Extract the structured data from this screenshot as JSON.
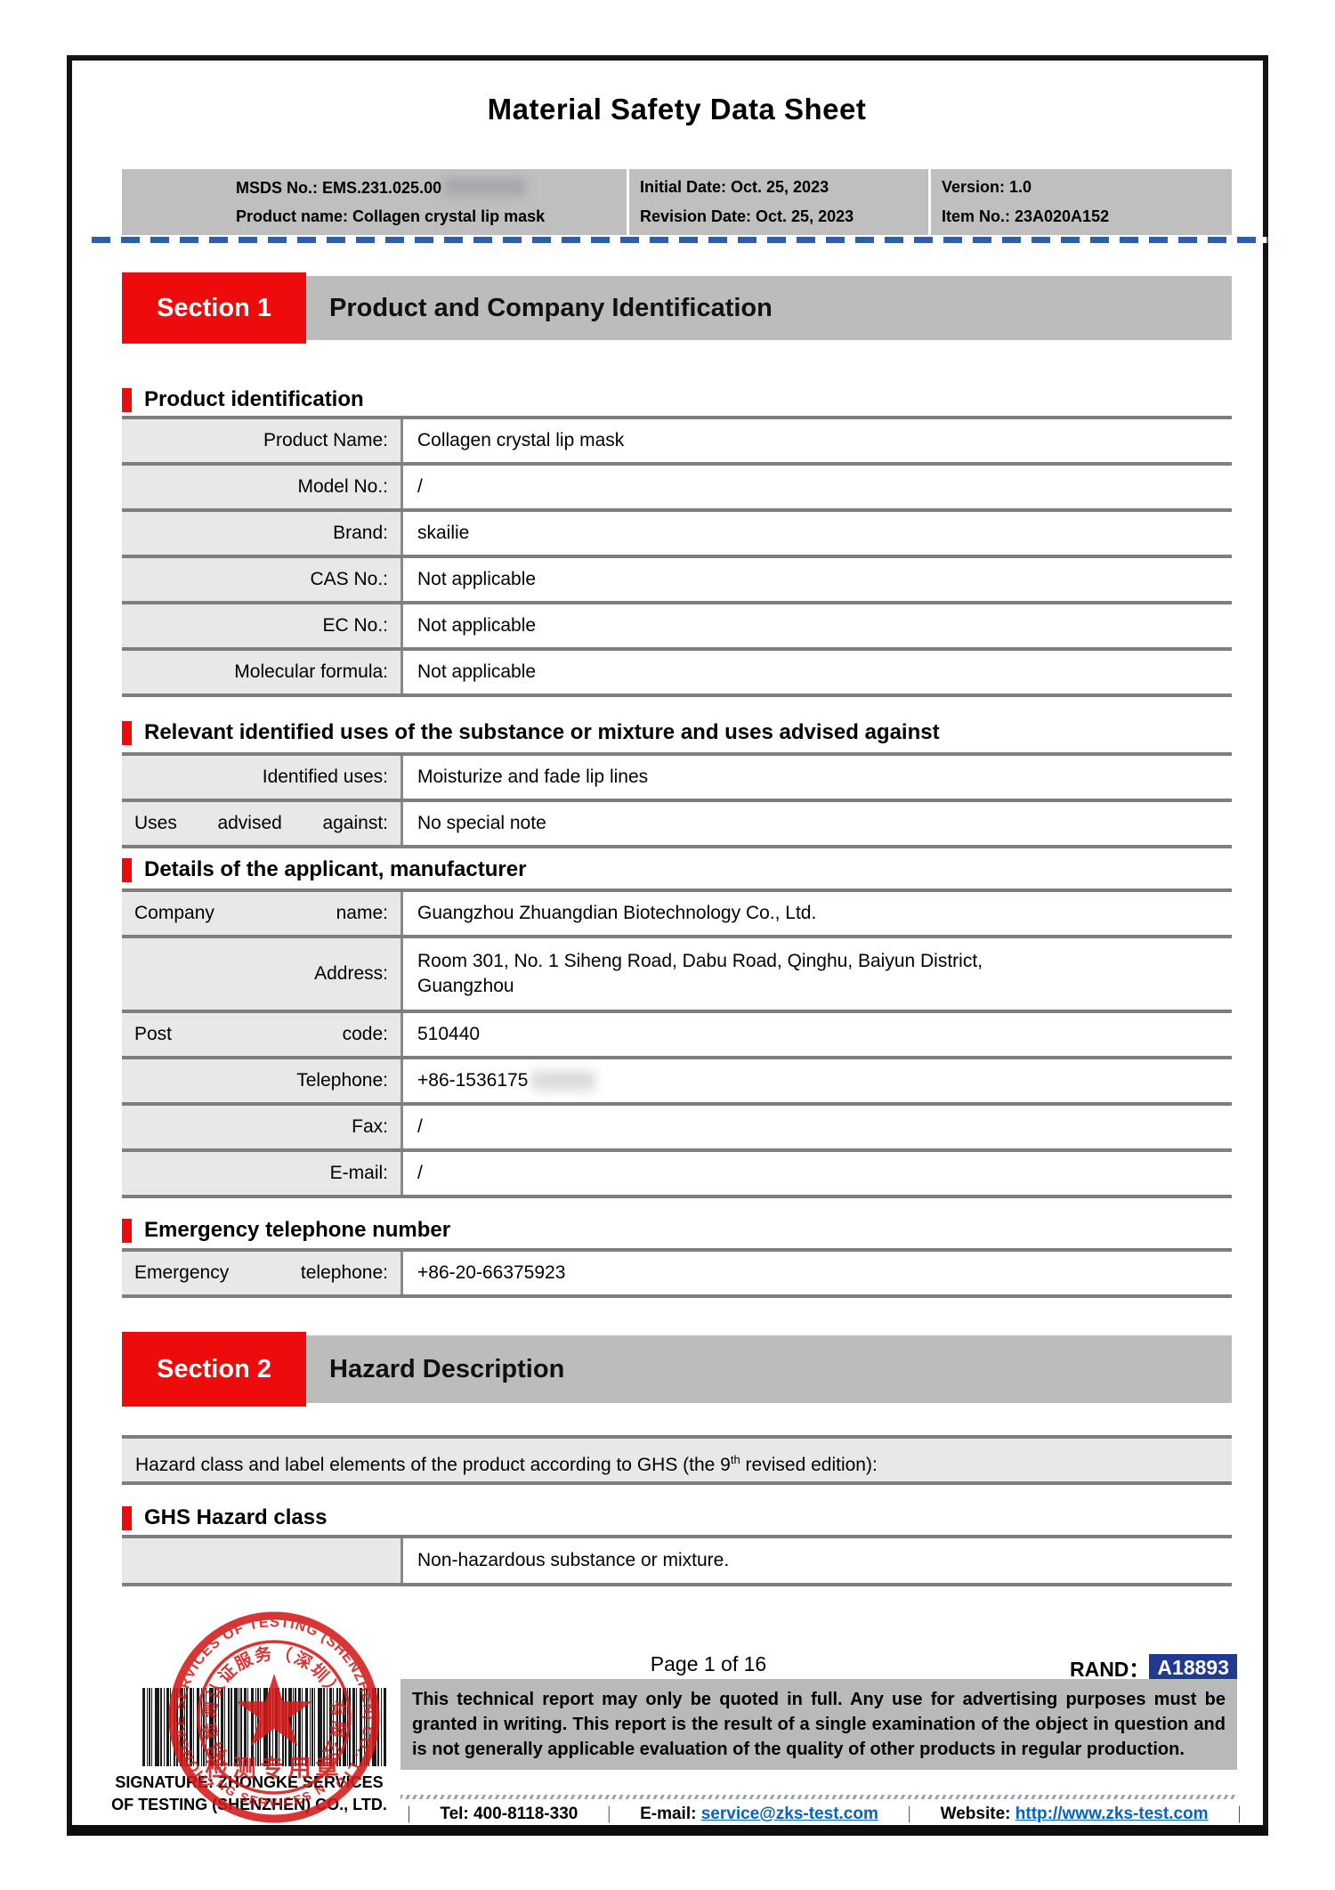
{
  "colors": {
    "accent_red": "#ee0b0b",
    "banner_gray": "#bcbcbc",
    "header_table_gray": "#bfbfbf",
    "label_cell_gray": "#e8e8e8",
    "table_line_gray": "#7e7e7e",
    "dashed_line_blue": "#2d5fa6",
    "link_blue": "#0563c1",
    "rand_badge_bg": "#1f3a8f",
    "rand_badge_text": "#ffffff",
    "stamp_red": "#d61a1a"
  },
  "title": "Material Safety Data Sheet",
  "header": {
    "rows": [
      {
        "c1": "MSDS No.: EMS.231.025.00",
        "c2": "Initial Date: Oct. 25, 2023",
        "c3": "Version: 1.0"
      },
      {
        "c1": "Product name: Collagen crystal lip mask",
        "c2": "Revision Date: Oct. 25, 2023",
        "c3": "Item No.: 23A020A152"
      }
    ]
  },
  "section1": {
    "badge": "Section 1",
    "title": "Product and Company Identification",
    "product_identification": {
      "heading": "Product identification",
      "rows": [
        {
          "label": "Product Name:",
          "value": "Collagen crystal lip mask"
        },
        {
          "label": "Model No.:",
          "value": "/"
        },
        {
          "label": "Brand:",
          "value": "skailie"
        },
        {
          "label": "CAS No.:",
          "value": "Not applicable"
        },
        {
          "label": "EC No.:",
          "value": "Not applicable"
        },
        {
          "label": "Molecular formula:",
          "value": "Not applicable"
        }
      ]
    },
    "identified_uses": {
      "heading": "Relevant identified uses of the substance or mixture and uses advised against",
      "rows": [
        {
          "label": "Identified uses:",
          "value": "Moisturize and fade lip lines"
        },
        {
          "label": "Uses advised against:",
          "value": "No special note"
        }
      ]
    },
    "manufacturer": {
      "heading": "Details of the applicant, manufacturer",
      "rows": [
        {
          "label": "Company name:",
          "value": "Guangzhou Zhuangdian Biotechnology Co., Ltd."
        },
        {
          "label": "Address:",
          "value": "Room 301, No. 1 Siheng Road, Dabu Road, Qinghu, Baiyun District,\nGuangzhou"
        },
        {
          "label": "Post code:",
          "value": "510440"
        },
        {
          "label": "Telephone:",
          "value": "+86-1536175"
        },
        {
          "label": "Fax:",
          "value": "/"
        },
        {
          "label": "E-mail:",
          "value": "/"
        }
      ]
    },
    "emergency": {
      "heading": "Emergency telephone number",
      "rows": [
        {
          "label": "Emergency telephone:",
          "value": "+86-20-66375923"
        }
      ]
    }
  },
  "section2": {
    "badge": "Section 2",
    "title": "Hazard Description",
    "ghs_note": {
      "pre": "Hazard class and label elements of the product according to GHS (the 9",
      "sup": "th",
      "post": " revised edition):"
    },
    "ghs_hazard": {
      "heading": "GHS Hazard class",
      "rows": [
        {
          "label": "",
          "value": "Non-hazardous substance or mixture."
        }
      ]
    }
  },
  "footer": {
    "page_info": "Page 1 of 16",
    "rand_label": "RAND：",
    "rand_value": "A18893",
    "disclaimer": "This technical report may only be quoted in full. Any use for advertising purposes must be granted in writing. This report is the result of a single examination of the object in question and is not generally applicable evaluation of the quality of other products in regular production.",
    "contact": {
      "divider": "｜",
      "tel_label": "Tel:",
      "tel_value": "400-8118-330",
      "email_label": "E-mail:",
      "email_value": "service@zks-test.com",
      "website_label": "Website:",
      "website_value": "http://www.zks-test.com"
    },
    "signature_line1": "SIGNATURE: ZHONGKE SERVICES",
    "signature_line2": "OF TESTING (SHENZHEN) CO., LTD.",
    "stamp": {
      "arc_top": "ZHONGKE SERVICES OF TESTING (SHENZHEN) CO., LTD",
      "arc_cn": "中科检测认证服务（深圳）有限公司",
      "arc_bottom": "TESTING SERVICES NO.1139",
      "center_cn": "检测专用章"
    }
  }
}
